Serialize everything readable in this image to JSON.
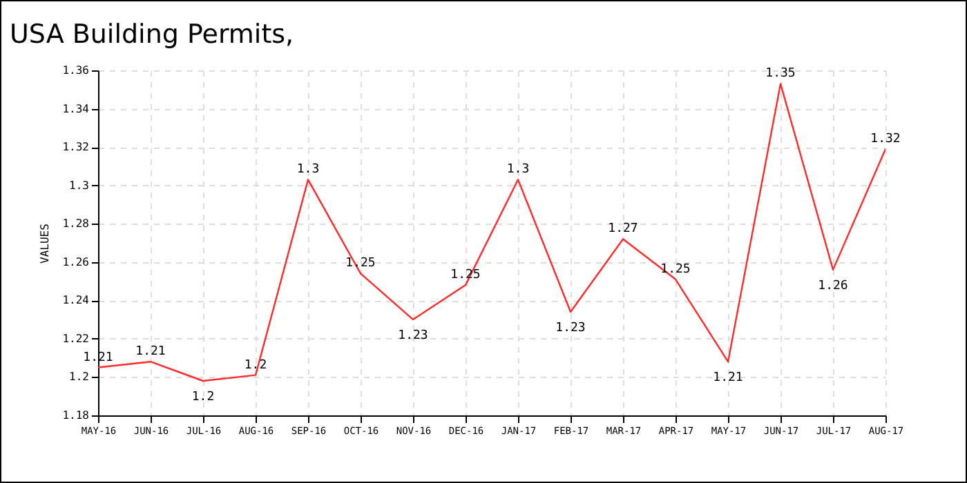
{
  "chart_data": {
    "type": "line",
    "title": "USA Building Permits,",
    "ylabel": "VALUES",
    "categories": [
      "MAY-16",
      "JUN-16",
      "JUL-16",
      "AUG-16",
      "SEP-16",
      "OCT-16",
      "NOV-16",
      "DEC-16",
      "JAN-17",
      "FEB-17",
      "MAR-17",
      "APR-17",
      "MAY-17",
      "JUN-17",
      "JUL-17",
      "AUG-17"
    ],
    "series": [
      {
        "color": "#ff2a2a",
        "values": [
          1.205,
          1.208,
          1.198,
          1.201,
          1.303,
          1.254,
          1.23,
          1.248,
          1.303,
          1.234,
          1.272,
          1.251,
          1.208,
          1.353,
          1.256,
          1.319
        ],
        "value_labels": [
          "1.21",
          "1.21",
          "1.2",
          "1.2",
          "1.3",
          "1.25",
          "1.23",
          "1.25",
          "1.3",
          "1.23",
          "1.27",
          "1.25",
          "1.21",
          "1.35",
          "1.26",
          "1.32"
        ]
      }
    ],
    "ylim": [
      1.18,
      1.36
    ],
    "yticks": [
      1.18,
      1.2,
      1.22,
      1.24,
      1.26,
      1.28,
      1.3,
      1.32,
      1.34,
      1.36
    ],
    "grid": true,
    "marker": "none",
    "line_style": "solid"
  }
}
